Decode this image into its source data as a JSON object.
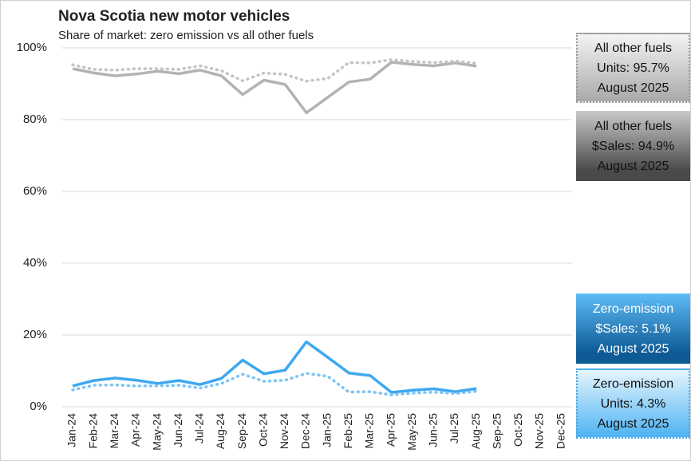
{
  "chart_data": {
    "type": "line",
    "title": "Nova Scotia new motor vehicles",
    "subtitle": "Share of market: zero emission vs all other fuels",
    "categories": [
      "Jan-24",
      "Feb-24",
      "Mar-24",
      "Apr-24",
      "May-24",
      "Jun-24",
      "Jul-24",
      "Aug-24",
      "Sep-24",
      "Oct-24",
      "Nov-24",
      "Dec-24",
      "Jan-25",
      "Feb-25",
      "Mar-25",
      "Apr-25",
      "May-25",
      "Jun-25",
      "Jul-25",
      "Aug-25",
      "Sep-25",
      "Oct-25",
      "Nov-25",
      "Dec-25"
    ],
    "series": [
      {
        "color": "#b3b3b3",
        "dashed": false,
        "values": [
          94.2,
          93.0,
          92.2,
          92.7,
          93.5,
          92.8,
          93.8,
          92.2,
          87.0,
          91.0,
          89.8,
          81.9,
          86.2,
          90.5,
          91.3,
          96.0,
          95.4,
          95.0,
          95.8,
          94.9,
          null,
          null,
          null,
          null
        ]
      },
      {
        "color": "#c4c4c4",
        "dashed": true,
        "values": [
          95.3,
          94.0,
          93.8,
          94.2,
          94.2,
          94.0,
          95.0,
          93.6,
          90.8,
          93.0,
          92.6,
          90.7,
          91.5,
          95.9,
          95.8,
          96.7,
          96.2,
          95.9,
          96.3,
          95.7,
          null,
          null,
          null,
          null
        ]
      },
      {
        "color": "#3ea8f0",
        "dashed": false,
        "values": [
          5.8,
          7.3,
          8.0,
          7.4,
          6.5,
          7.3,
          6.2,
          7.9,
          13.0,
          9.2,
          10.2,
          18.1,
          13.8,
          9.4,
          8.7,
          4.0,
          4.6,
          5.0,
          4.2,
          5.1,
          null,
          null,
          null,
          null
        ]
      },
      {
        "color": "#7cc4f5",
        "dashed": true,
        "values": [
          4.7,
          6.0,
          6.1,
          5.8,
          5.8,
          6.0,
          5.2,
          6.5,
          9.1,
          7.1,
          7.4,
          9.3,
          8.5,
          4.1,
          4.2,
          3.3,
          3.8,
          4.1,
          3.7,
          4.3,
          null,
          null,
          null,
          null
        ]
      }
    ],
    "ylim": [
      0,
      100
    ],
    "yticks": [
      {
        "value": 0,
        "label": "0%"
      },
      {
        "value": 20,
        "label": "20%"
      },
      {
        "value": 40,
        "label": "40%"
      },
      {
        "value": 60,
        "label": "60%"
      },
      {
        "value": 80,
        "label": "80%"
      },
      {
        "value": 100,
        "label": "100%"
      }
    ],
    "grid": true,
    "annotations": [
      {
        "lines": [
          "All other fuels",
          "Units: 95.7%",
          "August 2025"
        ]
      },
      {
        "lines": [
          "All other fuels",
          "$Sales: 94.9%",
          "August 2025"
        ]
      },
      {
        "lines": [
          "Zero-emission",
          "$Sales: 5.1%",
          "August 2025"
        ]
      },
      {
        "lines": [
          "Zero-emission",
          "Units: 4.3%",
          "August 2025"
        ]
      }
    ]
  }
}
